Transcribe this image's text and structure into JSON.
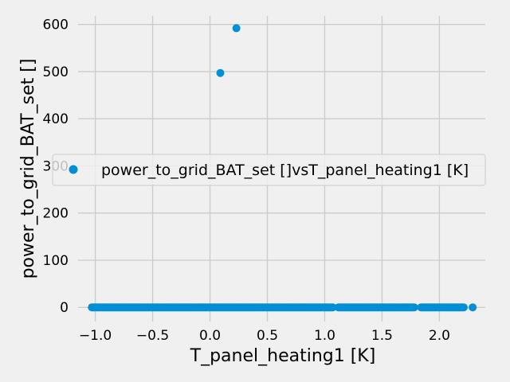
{
  "chart_data": {
    "type": "scatter",
    "title": "",
    "xlabel": "T_panel_heating1 [K]",
    "ylabel": "power_to_grid_BAT_set []",
    "xlim": [
      -1.15,
      2.4
    ],
    "ylim": [
      -30,
      618
    ],
    "xticks": [
      -1.0,
      -0.5,
      0.0,
      0.5,
      1.0,
      1.5,
      2.0
    ],
    "xtick_labels": [
      "−1.0",
      "−0.5",
      "0.0",
      "0.5",
      "1.0",
      "1.5",
      "2.0"
    ],
    "yticks": [
      0,
      100,
      200,
      300,
      400,
      500,
      600
    ],
    "ytick_labels": [
      "0",
      "100",
      "200",
      "300",
      "400",
      "500",
      "600"
    ],
    "grid": true,
    "legend_position": "center",
    "series": [
      {
        "name": "power_to_grid_BAT_set []vsT_panel_heating1 [K]",
        "color": "#008fd5",
        "outliers": [
          {
            "x": 0.09,
            "y": 497
          },
          {
            "x": 0.23,
            "y": 592
          }
        ],
        "baseline_segments": [
          {
            "from": -1.03,
            "to": 1.08,
            "y": 0
          },
          {
            "from": 1.12,
            "to": 1.78,
            "y": 0
          },
          {
            "from": 1.84,
            "to": 2.22,
            "y": 0
          }
        ],
        "extra_points": [
          {
            "x": 2.29,
            "y": 0
          }
        ]
      }
    ]
  }
}
